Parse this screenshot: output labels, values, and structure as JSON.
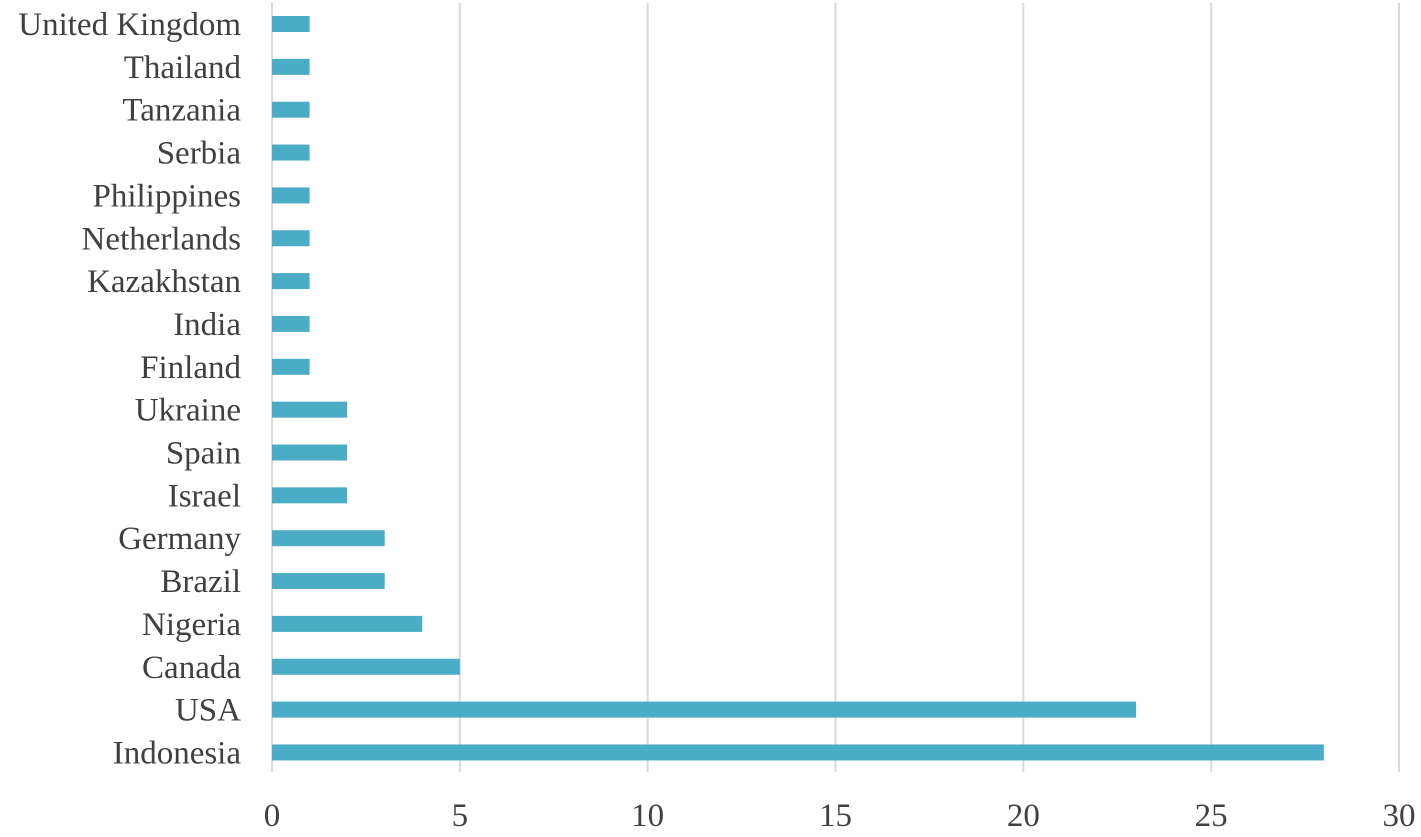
{
  "chart_data": {
    "type": "bar",
    "orientation": "horizontal",
    "categories": [
      "United Kingdom",
      "Thailand",
      "Tanzania",
      "Serbia",
      "Philippines",
      "Netherlands",
      "Kazakhstan",
      "India",
      "Finland",
      "Ukraine",
      "Spain",
      "Israel",
      "Germany",
      "Brazil",
      "Nigeria",
      "Canada",
      "USA",
      "Indonesia"
    ],
    "values": [
      1,
      1,
      1,
      1,
      1,
      1,
      1,
      1,
      1,
      2,
      2,
      2,
      3,
      3,
      4,
      5,
      23,
      28
    ],
    "xlim": [
      0,
      30
    ],
    "xticks": [
      "0",
      "5",
      "10",
      "15",
      "20",
      "25",
      "30"
    ],
    "title": "",
    "xlabel": "",
    "ylabel": "",
    "grid": "vertical",
    "legend": "none",
    "colors": {
      "bar": "#4bacc6",
      "grid": "#d9d9d9",
      "text": "#404040"
    }
  }
}
